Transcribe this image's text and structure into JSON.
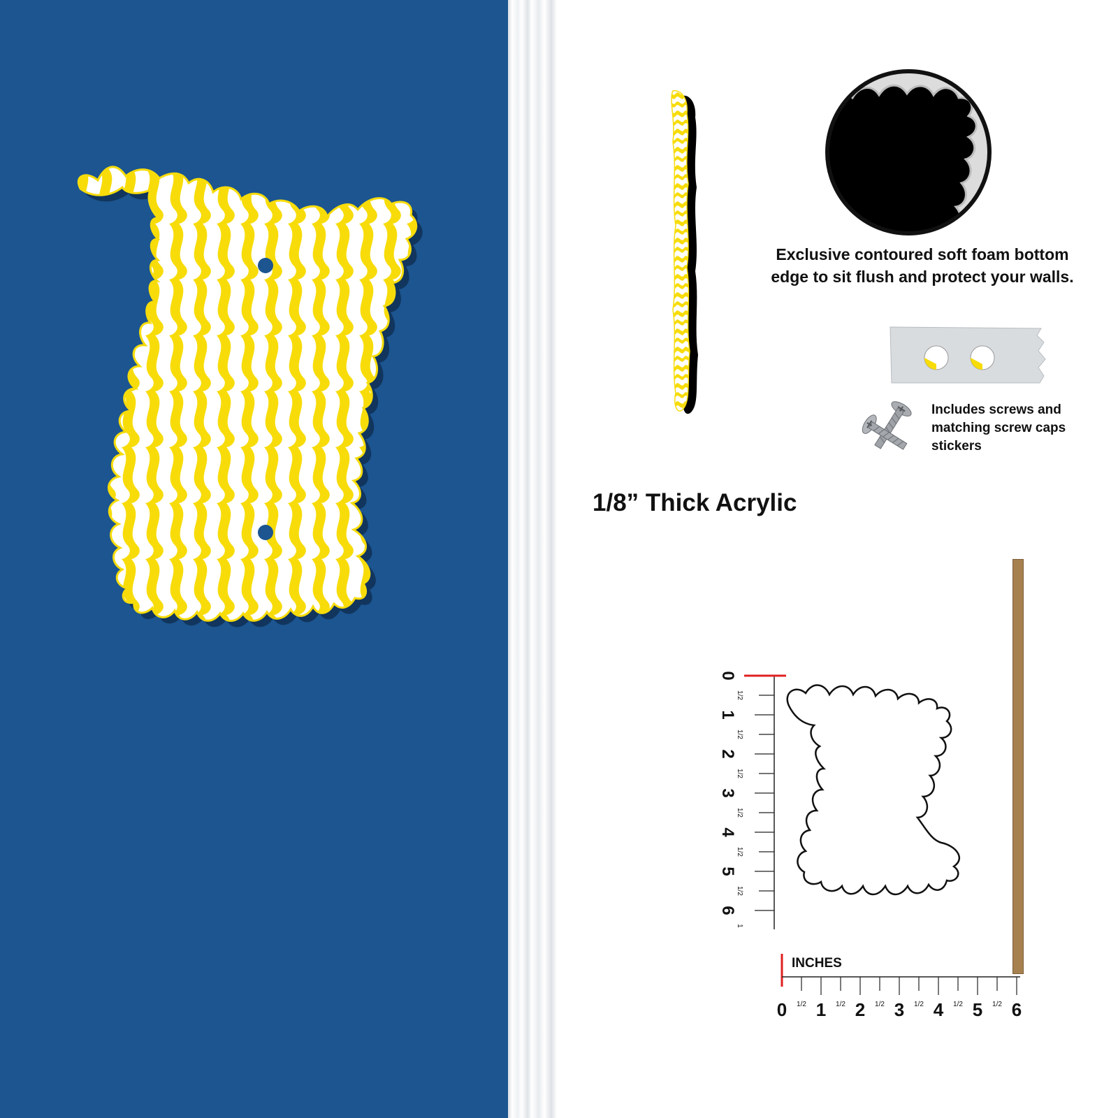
{
  "colors": {
    "wall": "#1c5590",
    "sign_yellow": "#f7dc0a",
    "sign_white": "#ffffff",
    "ruler_zero_mark": "#e02020",
    "wood": "#a6814f"
  },
  "product": {
    "image": "yellow-white-wavy-acrylic-sign",
    "mounting_holes": 2
  },
  "foam_edge": {
    "icon": "foam-edge-closeup-icon",
    "caption": "Exclusive contoured soft foam bottom edge to sit flush and protect your walls."
  },
  "screws": {
    "icon": "screws-icon",
    "caps_icon": "screw-caps-sticker-icon",
    "caption": "Includes screws and matching screw caps stickers"
  },
  "thickness_label": "1/8” Thick Acrylic",
  "rulers": {
    "unit_label": "INCHES",
    "vertical_labels": [
      "0",
      "1/2",
      "1",
      "1/2",
      "2",
      "1/2",
      "3",
      "1/2",
      "4",
      "1/2",
      "5",
      "1/2",
      "6",
      "1"
    ],
    "horizontal_labels": [
      "0",
      "1/2",
      "1",
      "1/2",
      "2",
      "1/2",
      "3",
      "1/2",
      "4",
      "1/2",
      "5",
      "1/2",
      "6"
    ]
  }
}
